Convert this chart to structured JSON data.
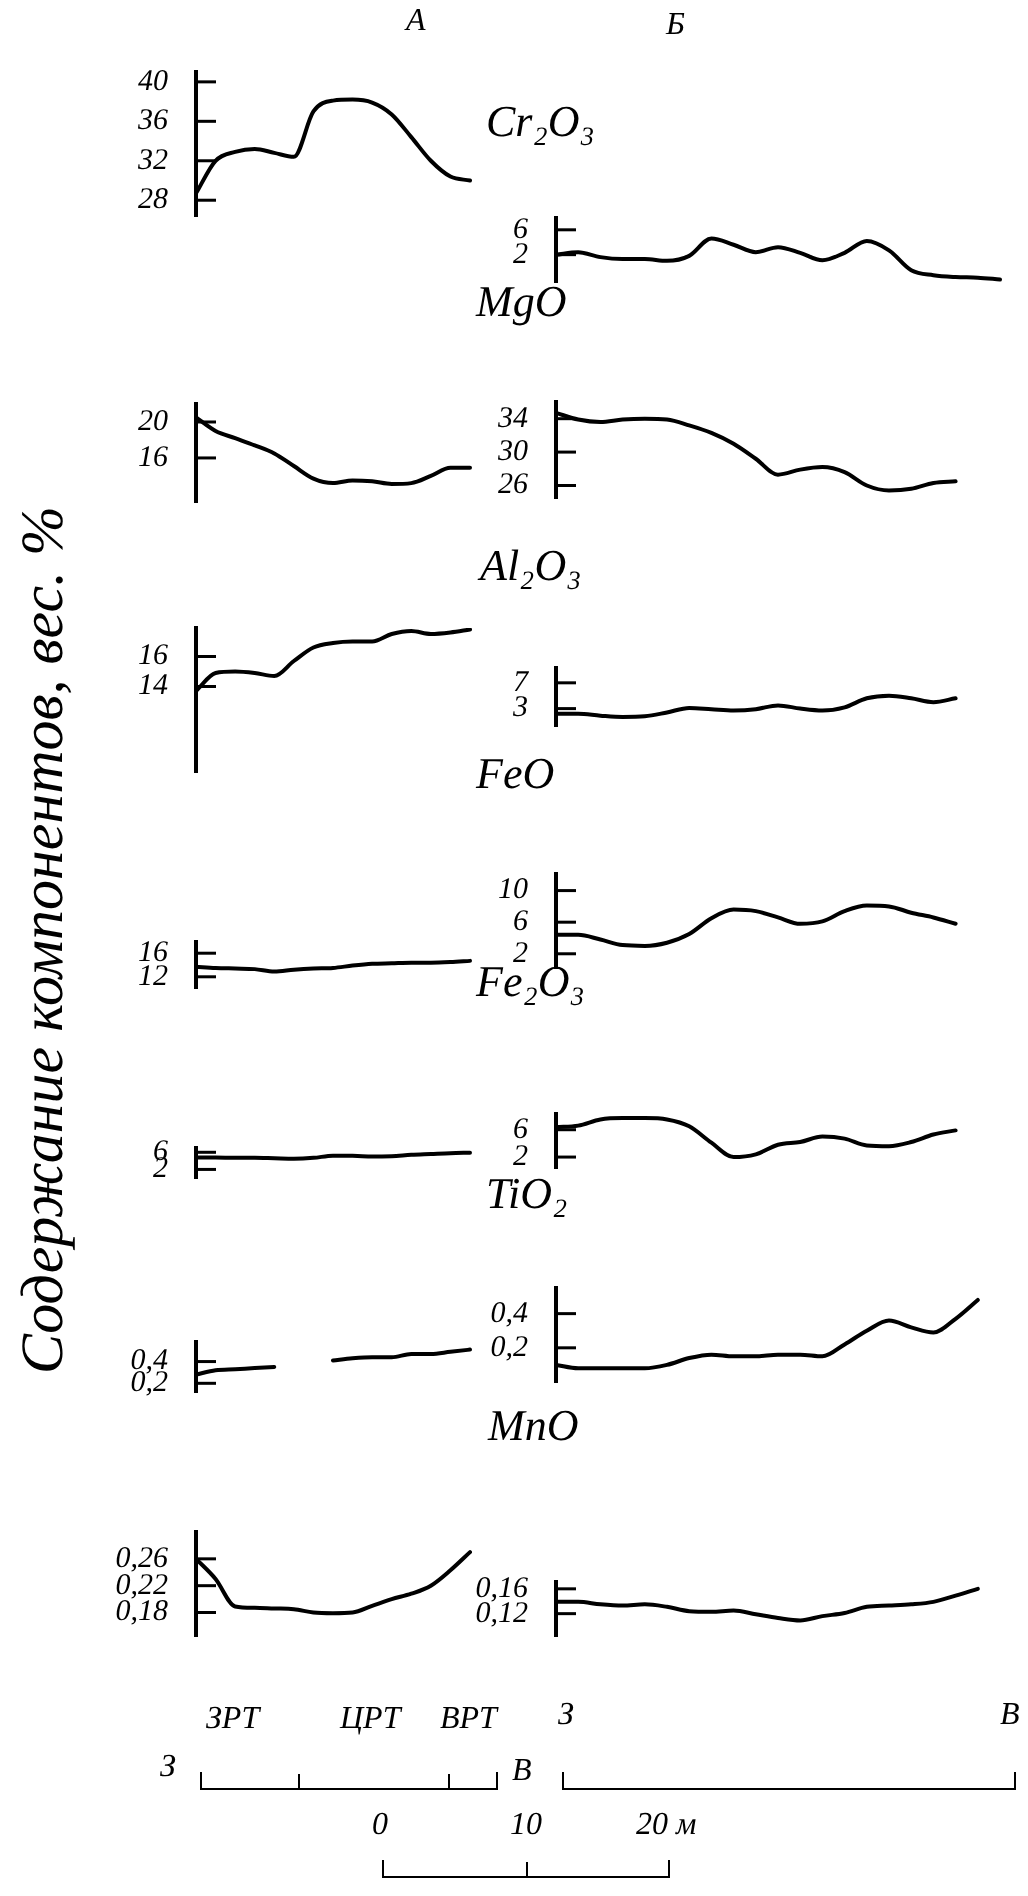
{
  "chart_data": [
    {
      "type": "line",
      "ylabel": "Содержание компонентов, вес. %",
      "annotations": [
        "А"
      ],
      "categories": [
        null,
        null,
        null,
        null,
        null,
        null,
        null,
        null,
        null,
        null,
        null,
        null,
        null,
        null,
        null
      ],
      "values": [
        28.7,
        32,
        32.9,
        33.2,
        32.8,
        32.4,
        37,
        38.1,
        38.2,
        37.9,
        36.7,
        34.4,
        32,
        30.4,
        30
      ],
      "color": "#000000",
      "ylim": [
        26.4,
        41
      ],
      "yticks": [
        28,
        32,
        36,
        40
      ],
      "tick_labels": "y",
      "marker": "none"
    },
    {
      "type": "line",
      "title": "Cr₂O₃",
      "annotations": [
        "Б"
      ],
      "categories": [
        null,
        null,
        null,
        null,
        null,
        null,
        null,
        null,
        null,
        null,
        null,
        null,
        null,
        null,
        null,
        null,
        null,
        null,
        null,
        null,
        null
      ],
      "values": [
        2,
        2.4,
        1.6,
        1.3,
        1.3,
        1,
        1.8,
        4.6,
        3.6,
        2.4,
        3.2,
        2.3,
        1.1,
        2.3,
        4.2,
        2.7,
        -0.5,
        -1.3,
        -1.6,
        -1.7,
        -2
      ],
      "color": "#000000",
      "ylim": [
        -2.4,
        7.9
      ],
      "yticks": [
        2,
        6
      ],
      "tick_labels": "y",
      "marker": "none"
    },
    {
      "type": "line",
      "categories": [
        null,
        null,
        null,
        null,
        null,
        null,
        null,
        null,
        null,
        null,
        null,
        null,
        null,
        null,
        null
      ],
      "values": [
        20.5,
        19,
        18.2,
        17.4,
        16.5,
        15.1,
        13.7,
        13.2,
        13.5,
        13.4,
        13.1,
        13.2,
        14,
        14.9,
        14.9
      ],
      "color": "#000000",
      "ylim": [
        11.1,
        22
      ],
      "yticks": [
        16,
        20
      ],
      "tick_labels": "y",
      "marker": "none"
    },
    {
      "type": "line",
      "title": "MgO",
      "categories": [
        null,
        null,
        null,
        null,
        null,
        null,
        null,
        null,
        null,
        null,
        null,
        null,
        null,
        null,
        null,
        null,
        null,
        null,
        null,
        null,
        null
      ],
      "values": [
        34.7,
        33.9,
        33.6,
        33.9,
        34,
        33.9,
        33.2,
        32.3,
        31,
        29.2,
        27.3,
        27.9,
        28.2,
        27.6,
        26,
        25.4,
        25.6,
        26.3,
        26.5,
        null,
        null
      ],
      "color": "#000000",
      "ylim": [
        24.5,
        36
      ],
      "yticks": [
        26,
        30,
        34
      ],
      "tick_labels": "y",
      "marker": "none"
    },
    {
      "type": "line",
      "categories": [
        null,
        null,
        null,
        null,
        null,
        null,
        null,
        null,
        null,
        null,
        null,
        null,
        null,
        null,
        null
      ],
      "values": [
        13.7,
        14.9,
        15,
        14.9,
        14.7,
        15.7,
        16.6,
        16.9,
        17,
        17,
        17.5,
        17.7,
        17.5,
        17.6,
        17.8
      ],
      "color": "#000000",
      "ylim": [
        8.3,
        17.9
      ],
      "yticks": [
        14,
        16
      ],
      "tick_labels": "y",
      "marker": "none"
    },
    {
      "type": "line",
      "title": "Al₂O₃",
      "categories": [
        null,
        null,
        null,
        null,
        null,
        null,
        null,
        null,
        null,
        null,
        null,
        null,
        null,
        null,
        null,
        null,
        null,
        null,
        null,
        null,
        null
      ],
      "values": [
        2.2,
        2.2,
        1.9,
        1.7,
        1.8,
        2.4,
        3.1,
        2.9,
        2.7,
        2.9,
        3.5,
        3,
        2.7,
        3.2,
        4.6,
        5,
        4.6,
        4,
        4.6,
        null,
        null
      ],
      "color": "#000000",
      "ylim": [
        0.3,
        9.3
      ],
      "yticks": [
        3,
        7
      ],
      "tick_labels": "y",
      "marker": "none"
    },
    {
      "type": "line",
      "categories": [
        null,
        null,
        null,
        null,
        null,
        null,
        null,
        null,
        null,
        null,
        null,
        null,
        null,
        null,
        null
      ],
      "values": [
        13.7,
        13.5,
        13.4,
        13.3,
        12.9,
        13.2,
        13.4,
        13.5,
        13.9,
        14.2,
        14.3,
        14.4,
        14.4,
        14.5,
        14.7
      ],
      "color": "#000000",
      "ylim": [
        10.1,
        17.9
      ],
      "yticks": [
        12,
        16
      ],
      "tick_labels": "y",
      "marker": "none"
    },
    {
      "type": "line",
      "title": "FeO",
      "categories": [
        null,
        null,
        null,
        null,
        null,
        null,
        null,
        null,
        null,
        null,
        null,
        null,
        null,
        null,
        null,
        null,
        null,
        null,
        null,
        null,
        null
      ],
      "values": [
        4.4,
        4.4,
        3.8,
        3.1,
        3,
        3.4,
        4.5,
        6.5,
        7.6,
        7.4,
        6.6,
        5.8,
        6.1,
        7.4,
        8.1,
        8,
        7.2,
        6.6,
        5.8,
        null,
        null
      ],
      "color": "#000000",
      "ylim": [
        0.2,
        12.1
      ],
      "yticks": [
        2,
        6,
        10
      ],
      "tick_labels": "y",
      "marker": "none"
    },
    {
      "type": "line",
      "categories": [
        null,
        null,
        null,
        null,
        null,
        null,
        null,
        null,
        null,
        null,
        null,
        null,
        null,
        null,
        null
      ],
      "values": [
        4.8,
        4.8,
        4.7,
        4.7,
        4.6,
        4.5,
        4.7,
        5.2,
        5.2,
        5,
        5.1,
        5.4,
        5.6,
        5.8,
        5.9
      ],
      "color": "#000000",
      "ylim": [
        0,
        7
      ],
      "yticks": [
        2,
        6
      ],
      "tick_labels": "y",
      "marker": "none"
    },
    {
      "type": "line",
      "title": "Fe₂O₃",
      "categories": [
        null,
        null,
        null,
        null,
        null,
        null,
        null,
        null,
        null,
        null,
        null,
        null,
        null,
        null,
        null,
        null,
        null,
        null,
        null,
        null,
        null
      ],
      "values": [
        6.4,
        6.6,
        7.5,
        7.7,
        7.7,
        7.5,
        6.5,
        4.1,
        2,
        2.4,
        3.8,
        4.2,
        5,
        4.7,
        3.7,
        3.6,
        4.2,
        5.3,
        5.9,
        null,
        null
      ],
      "color": "#000000",
      "ylim": [
        0.4,
        8.3
      ],
      "yticks": [
        2,
        6
      ],
      "tick_labels": "y",
      "marker": "none"
    },
    {
      "type": "line",
      "categories": [
        null,
        null,
        null,
        null,
        null,
        null,
        null,
        null,
        null,
        null,
        null,
        null,
        null,
        null,
        null
      ],
      "values": [
        0.28,
        0.32,
        0.33,
        0.34,
        0.35,
        null,
        null,
        0.41,
        0.43,
        0.44,
        0.44,
        0.47,
        0.47,
        0.49,
        0.51
      ],
      "color": "#000000",
      "ylim": [
        0.12,
        0.58
      ],
      "yticks": [
        {
          "value": 0.2,
          "label": "0,2"
        },
        {
          "value": 0.4,
          "label": "0,4"
        }
      ],
      "tick_labels": "y",
      "marker": "none"
    },
    {
      "type": "line",
      "title": "TiO₂",
      "categories": [
        null,
        null,
        null,
        null,
        null,
        null,
        null,
        null,
        null,
        null,
        null,
        null,
        null,
        null,
        null,
        null,
        null,
        null,
        null,
        null,
        null
      ],
      "values": [
        0.1,
        0.08,
        0.08,
        0.08,
        0.08,
        0.1,
        0.14,
        0.16,
        0.15,
        0.15,
        0.16,
        0.16,
        0.15,
        0.22,
        0.3,
        0.36,
        0.32,
        0.29,
        0.37,
        0.48,
        null
      ],
      "color": "#000000",
      "ylim": [
        0,
        0.55
      ],
      "yticks": [
        {
          "value": 0.2,
          "label": "0,2"
        },
        {
          "value": 0.4,
          "label": "0,4"
        }
      ],
      "tick_labels": "y",
      "marker": "none"
    },
    {
      "type": "line",
      "annotations": [
        "З",
        "ЗРТ",
        "ЦРТ",
        "ВРТ",
        "В",
        "0",
        "10",
        "20 м"
      ],
      "categories": [
        null,
        null,
        null,
        null,
        null,
        null,
        null,
        null,
        null,
        null,
        null,
        null,
        null,
        null,
        null
      ],
      "values": [
        0.26,
        0.23,
        0.189,
        0.187,
        0.186,
        0.185,
        0.18,
        0.179,
        0.18,
        0.19,
        0.2,
        0.208,
        0.22,
        0.243,
        0.27
      ],
      "color": "#000000",
      "ylim": [
        0.145,
        0.3
      ],
      "yticks": [
        {
          "value": 0.18,
          "label": "0,18"
        },
        {
          "value": 0.22,
          "label": "0,22"
        },
        {
          "value": 0.26,
          "label": "0,26"
        }
      ],
      "tick_labels": "y",
      "marker": "none"
    },
    {
      "type": "line",
      "title": "MnO",
      "annotations": [
        "З",
        "В"
      ],
      "categories": [
        null,
        null,
        null,
        null,
        null,
        null,
        null,
        null,
        null,
        null,
        null,
        null,
        null,
        null,
        null,
        null,
        null,
        null,
        null,
        null,
        null
      ],
      "values": [
        0.139,
        0.139,
        0.135,
        0.133,
        0.135,
        0.131,
        0.124,
        0.123,
        0.125,
        0.119,
        0.113,
        0.109,
        0.116,
        0.121,
        0.131,
        0.133,
        0.135,
        0.139,
        0.149,
        0.16,
        null
      ],
      "color": "#000000",
      "ylim": [
        0.084,
        0.171
      ],
      "yticks": [
        {
          "value": 0.12,
          "label": "0,12"
        },
        {
          "value": 0.16,
          "label": "0,16"
        }
      ],
      "tick_labels": "y",
      "marker": "none"
    }
  ]
}
